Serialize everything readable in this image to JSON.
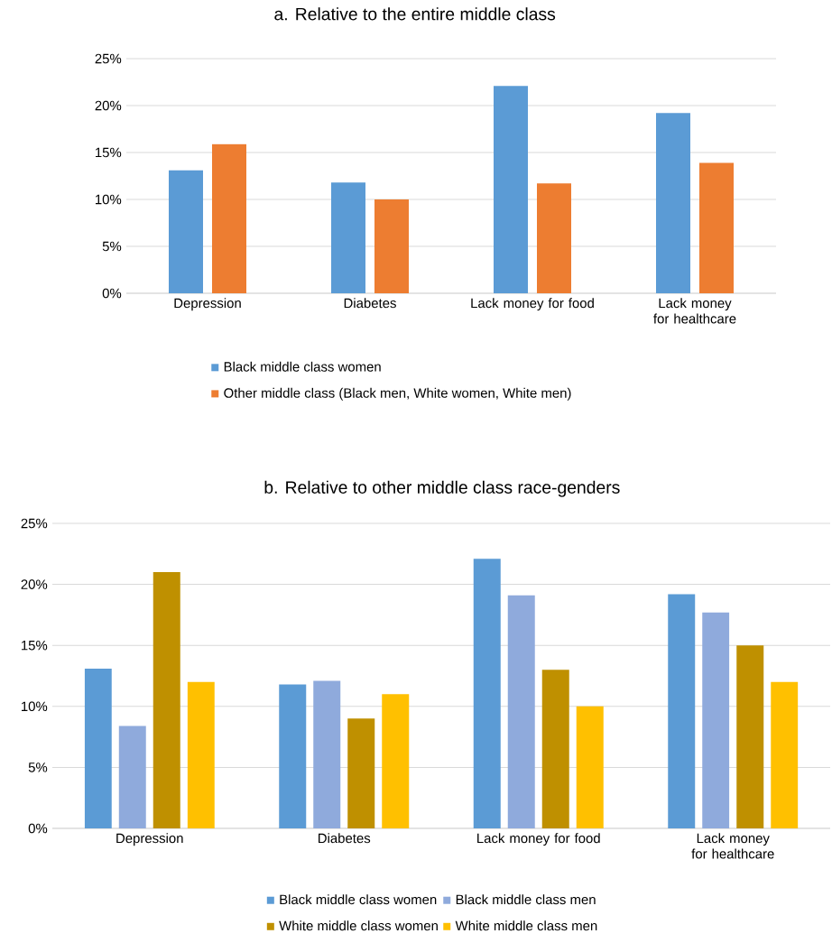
{
  "chart_data": [
    {
      "type": "bar",
      "title": "a. Relative to the entire middle class",
      "categories": [
        "Depression",
        "Diabetes",
        "Lack money for food",
        "Lack money for healthcare"
      ],
      "series": [
        {
          "name": "Black middle class women",
          "color": "#5b9bd5",
          "values": [
            13.1,
            11.8,
            22.1,
            19.2
          ]
        },
        {
          "name": "Other middle class (Black men, White women, White men)",
          "color": "#ed7d31",
          "values": [
            15.9,
            10.0,
            11.7,
            13.9
          ]
        }
      ],
      "ylim": [
        0,
        25
      ],
      "yticks": [
        {
          "value": 0,
          "label": "0%"
        },
        {
          "value": 5,
          "label": "5%"
        },
        {
          "value": 10,
          "label": "10%"
        },
        {
          "value": 15,
          "label": "15%"
        },
        {
          "value": 20,
          "label": "20%"
        },
        {
          "value": 25,
          "label": "25%"
        }
      ],
      "grid": "y",
      "legend": "bottom"
    },
    {
      "type": "bar",
      "title": "b. Relative to other middle class race-genders",
      "categories": [
        "Depression",
        "Diabetes",
        "Lack money for food",
        "Lack money for healthcare"
      ],
      "series": [
        {
          "name": "Black middle class women",
          "color": "#5b9bd5",
          "values": [
            13.1,
            11.8,
            22.1,
            19.2
          ]
        },
        {
          "name": "Black middle class men",
          "color": "#8faadc",
          "values": [
            8.4,
            12.1,
            19.1,
            17.7
          ]
        },
        {
          "name": "White middle class women",
          "color": "#bf9000",
          "values": [
            21.0,
            9.0,
            13.0,
            15.0
          ]
        },
        {
          "name": "White middle class men",
          "color": "#ffc000",
          "values": [
            12.0,
            11.0,
            10.0,
            12.0
          ]
        }
      ],
      "ylim": [
        0,
        25
      ],
      "yticks": [
        {
          "value": 0,
          "label": "0%"
        },
        {
          "value": 5,
          "label": "5%"
        },
        {
          "value": 10,
          "label": "10%"
        },
        {
          "value": 15,
          "label": "15%"
        },
        {
          "value": 20,
          "label": "20%"
        },
        {
          "value": 25,
          "label": "25%"
        }
      ],
      "grid": "y",
      "legend": "bottom"
    }
  ]
}
